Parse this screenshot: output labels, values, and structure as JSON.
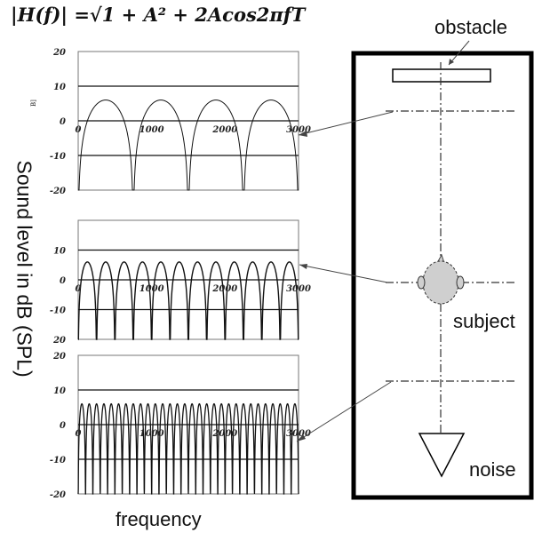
{
  "formula": "|H(f)|  =√1 + A² + 2Acos2πfT",
  "y_axis_label": "Sound level in dB (SPL)",
  "x_axis_label": "frequency",
  "unit_fragment": "B]",
  "diagram": {
    "obstacle_label": "obstacle",
    "subject_label": "subject",
    "noise_label": "noise"
  },
  "chart_data": [
    {
      "type": "line",
      "yticks": [
        "20",
        "10",
        "0",
        "-10",
        "-20"
      ],
      "xticks": [
        "0",
        "1000",
        "2000",
        "3000"
      ],
      "ylim": [
        -20,
        20
      ],
      "xlim": [
        0,
        3000
      ],
      "lobes": 4,
      "peak_db": 6
    },
    {
      "type": "line",
      "yticks": [
        "10",
        "0",
        "-10",
        "20"
      ],
      "xticks": [
        "0",
        "1000",
        "2000",
        "3000"
      ],
      "ylim": [
        -20,
        20
      ],
      "xlim": [
        0,
        3000
      ],
      "lobes": 12,
      "peak_db": 6
    },
    {
      "type": "line",
      "yticks": [
        "20",
        "10",
        "0",
        "-10",
        "-20"
      ],
      "xticks": [
        "0",
        "1000",
        "2000",
        "3000"
      ],
      "ylim": [
        -20,
        20
      ],
      "xlim": [
        0,
        3000
      ],
      "lobes": 30,
      "peak_db": 6
    }
  ]
}
